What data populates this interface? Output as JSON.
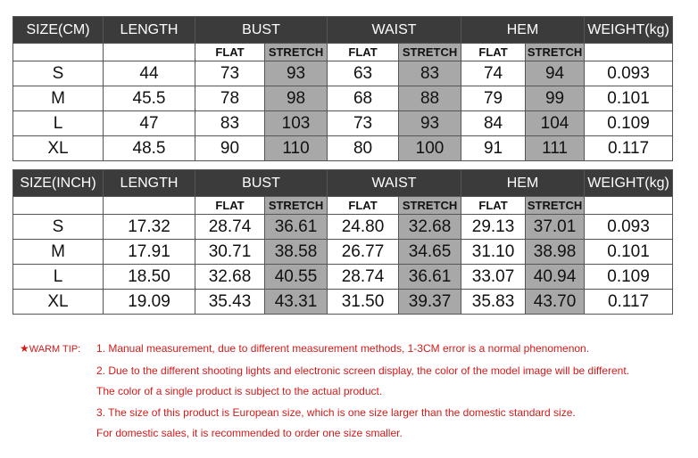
{
  "tables": {
    "cm": {
      "headers": [
        "SIZE(CM)",
        "LENGTH",
        "BUST",
        "WAIST",
        "HEM",
        "WEIGHT(kg)"
      ],
      "sub": [
        "FLAT",
        "STRETCH"
      ],
      "rows": [
        {
          "size": "S",
          "length": "44",
          "bust_flat": "73",
          "bust_stretch": "93",
          "waist_flat": "63",
          "waist_stretch": "83",
          "hem_flat": "74",
          "hem_stretch": "94",
          "weight": "0.093"
        },
        {
          "size": "M",
          "length": "45.5",
          "bust_flat": "78",
          "bust_stretch": "98",
          "waist_flat": "68",
          "waist_stretch": "88",
          "hem_flat": "79",
          "hem_stretch": "99",
          "weight": "0.101"
        },
        {
          "size": "L",
          "length": "47",
          "bust_flat": "83",
          "bust_stretch": "103",
          "waist_flat": "73",
          "waist_stretch": "93",
          "hem_flat": "84",
          "hem_stretch": "104",
          "weight": "0.109"
        },
        {
          "size": "XL",
          "length": "48.5",
          "bust_flat": "90",
          "bust_stretch": "110",
          "waist_flat": "80",
          "waist_stretch": "100",
          "hem_flat": "91",
          "hem_stretch": "111",
          "weight": "0.117"
        }
      ]
    },
    "inch": {
      "headers": [
        "SIZE(INCH)",
        "LENGTH",
        "BUST",
        "WAIST",
        "HEM",
        "WEIGHT(kg)"
      ],
      "sub": [
        "FLAT",
        "STRETCH"
      ],
      "rows": [
        {
          "size": "S",
          "length": "17.32",
          "bust_flat": "28.74",
          "bust_stretch": "36.61",
          "waist_flat": "24.80",
          "waist_stretch": "32.68",
          "hem_flat": "29.13",
          "hem_stretch": "37.01",
          "weight": "0.093"
        },
        {
          "size": "M",
          "length": "17.91",
          "bust_flat": "30.71",
          "bust_stretch": "38.58",
          "waist_flat": "26.77",
          "waist_stretch": "34.65",
          "hem_flat": "31.10",
          "hem_stretch": "38.98",
          "weight": "0.101"
        },
        {
          "size": "L",
          "length": "18.50",
          "bust_flat": "32.68",
          "bust_stretch": "40.55",
          "waist_flat": "28.74",
          "waist_stretch": "36.61",
          "hem_flat": "33.07",
          "hem_stretch": "40.94",
          "weight": "0.109"
        },
        {
          "size": "XL",
          "length": "19.09",
          "bust_flat": "35.43",
          "bust_stretch": "43.31",
          "waist_flat": "31.50",
          "waist_stretch": "39.37",
          "hem_flat": "35.83",
          "hem_stretch": "43.70",
          "weight": "0.117"
        }
      ]
    }
  },
  "tips": {
    "star": "★",
    "label": "WARM TIP:",
    "lines": [
      "1. Manual measurement, due to different measurement methods, 1-3CM error is a normal phenomenon.",
      "2. Due to the different shooting lights and electronic screen display, the  color of the model image will be different.",
      "The color of a single product is subject to the actual product.",
      "3. The size of this product is European size, which is one size larger than the domestic standard size.",
      "For domestic sales, it is recommended to order one size smaller."
    ]
  },
  "colors": {
    "header_bg": "#3b3b3b",
    "stretch_bg": "#a8a8a8",
    "tip_red": "#d41a1a"
  }
}
